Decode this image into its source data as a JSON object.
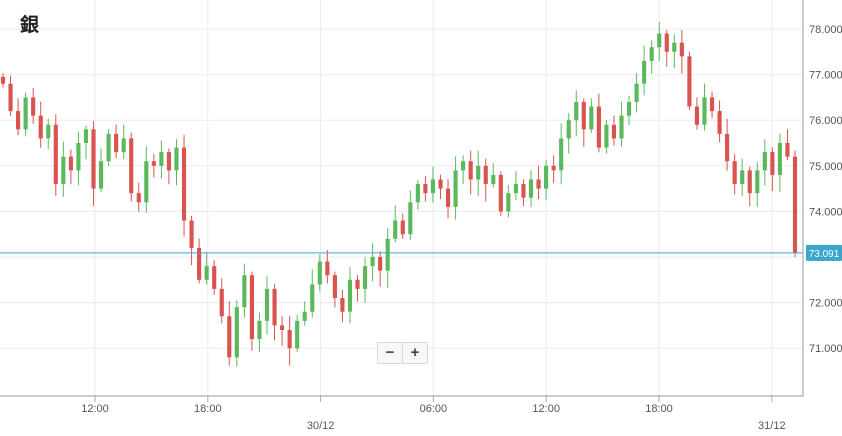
{
  "title": "銀",
  "zoom": {
    "minus_label": "−",
    "plus_label": "+"
  },
  "colors": {
    "up": "#5cb85c",
    "down": "#d9534f",
    "price_line": "#3aa6c9",
    "grid": "#ebebeb",
    "axis": "#999999",
    "label_bg": "#3aa6c9"
  },
  "chart_data": {
    "type": "candlestick",
    "title": "",
    "xlabel": "",
    "ylabel": "",
    "ylim": [
      70.1,
      78.3
    ],
    "y_ticks": [
      71,
      72,
      73,
      74,
      75,
      76,
      77,
      78
    ],
    "y_tick_labels": [
      "71.000",
      "72.000",
      "73.000",
      "74.000",
      "75.000",
      "76.000",
      "77.000",
      "78.000"
    ],
    "x_ticks": [
      {
        "hours": 12,
        "label": "12:00"
      },
      {
        "hours": 18,
        "label": "18:00"
      },
      {
        "hours": 24,
        "label": "30/12"
      },
      {
        "hours": 30,
        "label": "06:00"
      },
      {
        "hours": 36,
        "label": "12:00"
      },
      {
        "hours": 42,
        "label": "18:00"
      },
      {
        "hours": 48,
        "label": "31/12"
      }
    ],
    "last_price": 73.091,
    "last_price_label": "73.091",
    "series_close": [
      76.8,
      76.2,
      75.8,
      76.5,
      76.1,
      75.6,
      75.9,
      74.6,
      75.2,
      74.9,
      75.5,
      75.8,
      74.5,
      75.1,
      75.7,
      75.3,
      75.6,
      74.4,
      74.2,
      75.1,
      75.0,
      75.3,
      74.9,
      75.4,
      73.8,
      73.2,
      72.5,
      72.8,
      72.3,
      71.7,
      70.8,
      71.9,
      72.6,
      71.2,
      71.6,
      72.3,
      71.5,
      71.4,
      71.0,
      71.6,
      71.8,
      72.4,
      72.9,
      72.6,
      72.1,
      71.8,
      72.5,
      72.3,
      72.8,
      73.0,
      72.7,
      73.4,
      73.8,
      73.5,
      74.2,
      74.6,
      74.4,
      74.7,
      74.5,
      74.1,
      74.9,
      75.1,
      74.7,
      75.0,
      74.6,
      74.8,
      74.0,
      74.4,
      74.6,
      74.3,
      74.7,
      74.5,
      75.0,
      74.9,
      75.6,
      76.0,
      76.4,
      75.8,
      76.3,
      75.4,
      75.9,
      75.6,
      76.1,
      76.4,
      76.8,
      77.3,
      77.6,
      77.9,
      77.5,
      77.7,
      77.4,
      76.3,
      75.9,
      76.5,
      76.2,
      75.7,
      75.1,
      74.6,
      74.9,
      74.4,
      74.9,
      75.3,
      74.8,
      75.5,
      75.2,
      73.1
    ]
  }
}
